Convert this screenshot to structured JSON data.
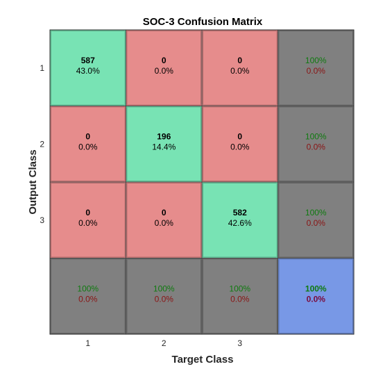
{
  "chart_data": {
    "type": "heatmap",
    "title": "SOC-3 Confusion Matrix",
    "xlabel": "Target Class",
    "ylabel": "Output Class",
    "x_ticks": [
      "1",
      "2",
      "3"
    ],
    "y_ticks": [
      "1",
      "2",
      "3"
    ],
    "matrix": [
      [
        {
          "count": "587",
          "percent": "43.0%"
        },
        {
          "count": "0",
          "percent": "0.0%"
        },
        {
          "count": "0",
          "percent": "0.0%"
        }
      ],
      [
        {
          "count": "0",
          "percent": "0.0%"
        },
        {
          "count": "196",
          "percent": "14.4%"
        },
        {
          "count": "0",
          "percent": "0.0%"
        }
      ],
      [
        {
          "count": "0",
          "percent": "0.0%"
        },
        {
          "count": "0",
          "percent": "0.0%"
        },
        {
          "count": "582",
          "percent": "42.6%"
        }
      ]
    ],
    "row_summary": [
      {
        "correct": "100%",
        "error": "0.0%"
      },
      {
        "correct": "100%",
        "error": "0.0%"
      },
      {
        "correct": "100%",
        "error": "0.0%"
      }
    ],
    "column_summary": [
      {
        "correct": "100%",
        "error": "0.0%"
      },
      {
        "correct": "100%",
        "error": "0.0%"
      },
      {
        "correct": "100%",
        "error": "0.0%"
      }
    ],
    "overall": {
      "correct": "100%",
      "error": "0.0%"
    },
    "colors": {
      "correct_cell": "#78e3b4",
      "error_cell": "#e68c8c",
      "summary_cell": "#808080",
      "overall_cell": "#7898e6",
      "correct_text": "#0f7a0f",
      "error_text": "#8a1414",
      "overall_correct_text": "#0f7a0f",
      "overall_error_text": "#7a0a3c",
      "grid_line": "#404040"
    }
  }
}
